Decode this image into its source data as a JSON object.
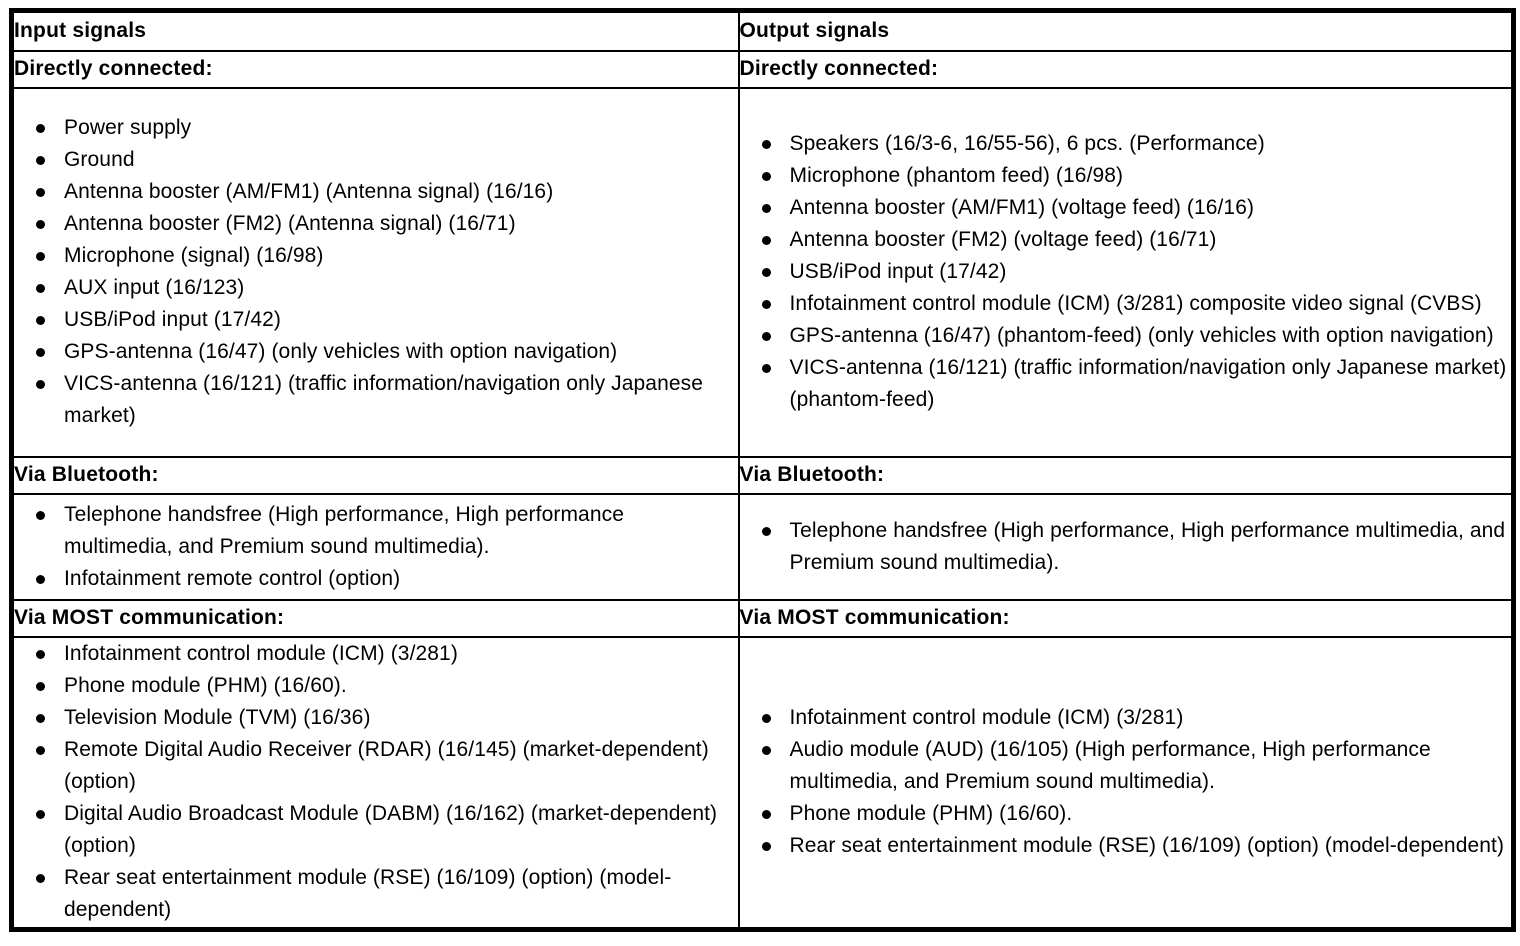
{
  "page": {
    "background_color": "#ffffff",
    "border_color": "#000000",
    "text_color": "#000000"
  },
  "table": {
    "columns": [
      {
        "header": "Input signals"
      },
      {
        "header": "Output signals"
      }
    ],
    "sections": [
      {
        "left_title": "Directly connected:",
        "right_title": "Directly connected:",
        "left_items": [
          "Power supply",
          "Ground",
          "Antenna booster (AM/FM1) (Antenna signal) (16/16)",
          "Antenna booster (FM2) (Antenna signal) (16/71)",
          "Microphone (signal) (16/98)",
          "AUX input (16/123)",
          "USB/iPod input (17/42)",
          "GPS-antenna (16/47) (only vehicles with option navigation)",
          "VICS-antenna (16/121) (traffic information/navigation only Japanese market)"
        ],
        "right_items": [
          "Speakers (16/3-6, 16/55-56), 6 pcs. (Performance)",
          "Microphone (phantom feed) (16/98)",
          "Antenna booster (AM/FM1) (voltage feed) (16/16)",
          "Antenna booster (FM2) (voltage feed) (16/71)",
          "USB/iPod input (17/42)",
          "Infotainment control module (ICM) (3/281) composite video signal (CVBS)",
          "GPS-antenna (16/47) (phantom-feed) (only vehicles with option navigation)",
          "VICS-antenna (16/121) (traffic information/navigation only Japanese market) (phantom-feed)"
        ]
      },
      {
        "left_title": "Via Bluetooth:",
        "right_title": "Via Bluetooth:",
        "left_items": [
          "Telephone handsfree (High performance, High performance multimedia, and Premium sound multimedia).",
          "Infotainment remote control (option)"
        ],
        "right_items": [
          "Telephone handsfree (High performance, High performance multimedia, and Premium sound multimedia)."
        ]
      },
      {
        "left_title": "Via MOST communication:",
        "right_title": "Via MOST communication:",
        "left_items": [
          "Infotainment control module (ICM) (3/281)",
          "Phone module (PHM) (16/60).",
          "Television Module (TVM) (16/36)",
          "Remote Digital Audio Receiver (RDAR) (16/145) (market-dependent) (option)",
          "Digital Audio Broadcast Module (DABM) (16/162) (market-dependent) (option)",
          "Rear seat entertainment module (RSE) (16/109) (option) (model-dependent)"
        ],
        "right_items": [
          "Infotainment control module (ICM) (3/281)",
          "Audio module (AUD) (16/105) (High performance, High performance multimedia, and Premium sound multimedia).",
          "Phone module (PHM) (16/60).",
          "Rear seat entertainment module (RSE) (16/109) (option) (model-dependent)"
        ]
      }
    ]
  }
}
